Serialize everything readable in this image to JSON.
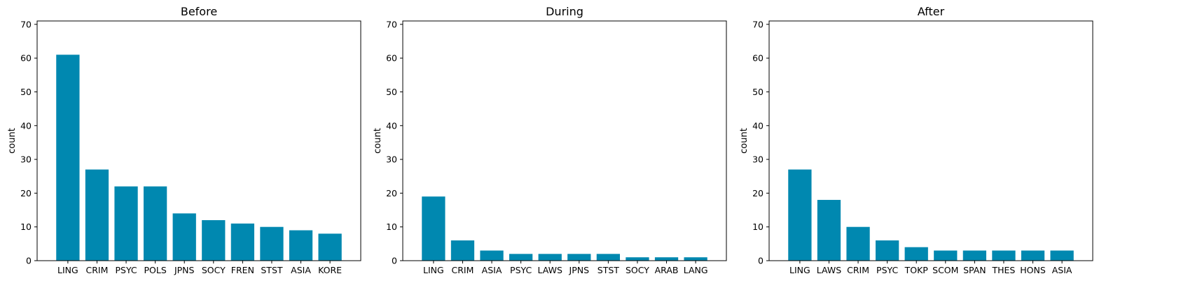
{
  "chart_data": [
    {
      "type": "bar",
      "title": "Before",
      "xlabel": "",
      "ylabel": "count",
      "ylim": [
        0,
        71
      ],
      "yticks": [
        0,
        10,
        20,
        30,
        40,
        50,
        60,
        70
      ],
      "grid": false,
      "color": "#0088b0",
      "categories": [
        "LING",
        "CRIM",
        "PSYC",
        "POLS",
        "JPNS",
        "SOCY",
        "FREN",
        "STST",
        "ASIA",
        "KORE"
      ],
      "values": [
        61,
        27,
        22,
        22,
        14,
        12,
        11,
        10,
        9,
        8
      ]
    },
    {
      "type": "bar",
      "title": "During",
      "xlabel": "",
      "ylabel": "count",
      "ylim": [
        0,
        71
      ],
      "yticks": [
        0,
        10,
        20,
        30,
        40,
        50,
        60,
        70
      ],
      "grid": false,
      "color": "#0088b0",
      "categories": [
        "LING",
        "CRIM",
        "ASIA",
        "PSYC",
        "LAWS",
        "JPNS",
        "STST",
        "SOCY",
        "ARAB",
        "LANG"
      ],
      "values": [
        19,
        6,
        3,
        2,
        2,
        2,
        2,
        1,
        1,
        1
      ]
    },
    {
      "type": "bar",
      "title": "After",
      "xlabel": "",
      "ylabel": "count",
      "ylim": [
        0,
        71
      ],
      "yticks": [
        0,
        10,
        20,
        30,
        40,
        50,
        60,
        70
      ],
      "grid": false,
      "color": "#0088b0",
      "categories": [
        "LING",
        "LAWS",
        "CRIM",
        "PSYC",
        "TOKP",
        "SCOM",
        "SPAN",
        "THES",
        "HONS",
        "ASIA"
      ],
      "values": [
        27,
        18,
        10,
        6,
        4,
        3,
        3,
        3,
        3,
        3
      ]
    }
  ]
}
